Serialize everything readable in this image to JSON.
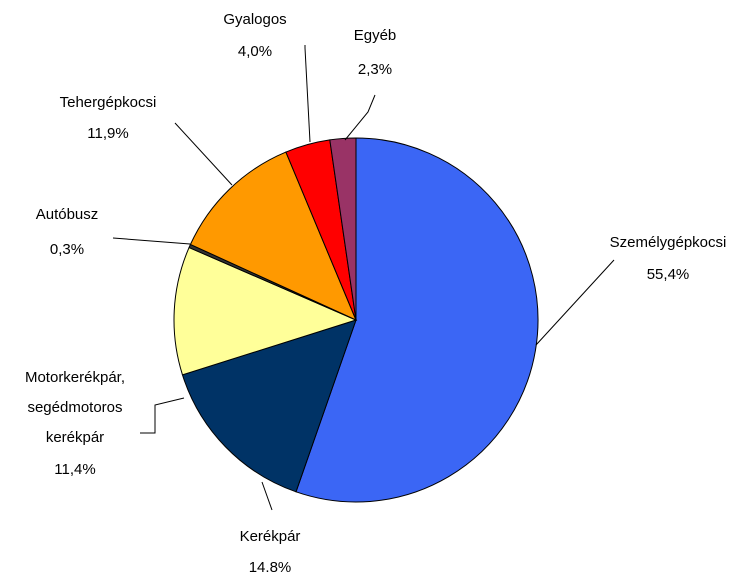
{
  "chart_data": {
    "type": "pie",
    "categories": [
      "Személygépkocsi",
      "Kerékpár",
      "Motorkerékpár, segédmotoros kerékpár",
      "Autóbusz",
      "Tehergépkocsi",
      "Gyalogos",
      "Egyéb"
    ],
    "values": [
      55.4,
      14.8,
      11.4,
      0.3,
      11.9,
      4.0,
      2.3
    ],
    "value_labels": [
      "55,4%",
      "14.8%",
      "11,4%",
      "0,3%",
      "11,9%",
      "4,0%",
      "2,3%"
    ],
    "colors": [
      "#3b66f5",
      "#003366",
      "#ffff99",
      "#333333",
      "#ff9900",
      "#ff0000",
      "#993366"
    ]
  }
}
